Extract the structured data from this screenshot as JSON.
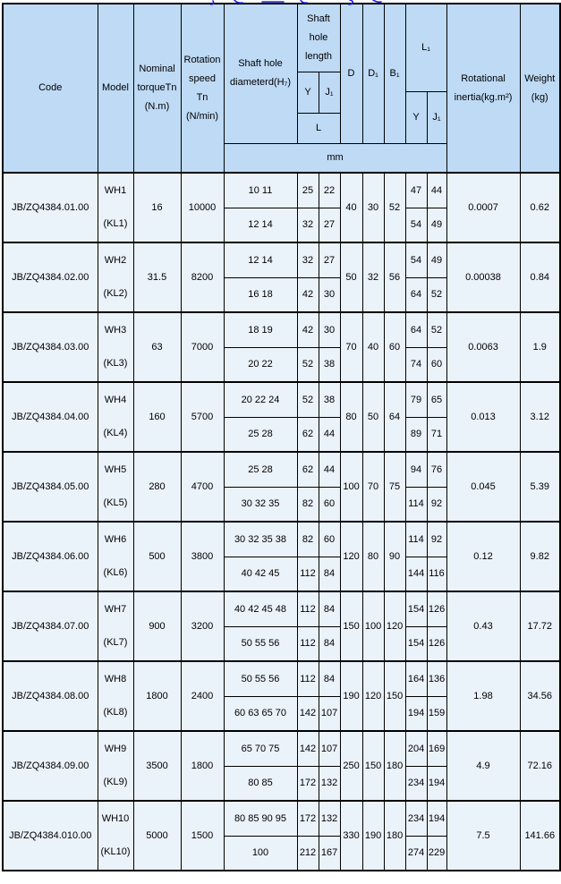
{
  "colors": {
    "header-bg": "#bedaf5",
    "row-bg": "#eaf2fa",
    "border": "#000000",
    "fragment-blue": "#1f1fe0",
    "page-bg": "#ffffff"
  },
  "table": {
    "header": {
      "code": "Code",
      "model": "Model",
      "torque": "Nominal\ntorqueTn\n(N.m)",
      "speed": "Rotation\nspeed\nTn\n(N/min)",
      "dia": "Shaft hole\ndiameterd(H₇)",
      "hole_length": "Shaft\nhole\nlength",
      "y": "Y",
      "j1": "J₁",
      "l": "L",
      "d": "D",
      "d1": "D₁",
      "b1": "B₁",
      "l1": "L₁",
      "l1_y": "Y",
      "l1_j1": "J₁",
      "inertia": "Rotational\ninertia(kg.m²)",
      "weight": "Weight\n(kg)",
      "unit": "mm"
    },
    "rows": [
      {
        "code": "JB/ZQ4384.01.00",
        "model": "WH1",
        "model_alt": "(KL1)",
        "torque": "16",
        "speed": "10000",
        "d": "40",
        "d1": "30",
        "b1": "52",
        "inertia": "0.0007",
        "weight": "0.62",
        "sub": [
          {
            "dia": "10 11",
            "y": "25",
            "j1": "22",
            "l1y": "47",
            "l1j1": "44"
          },
          {
            "dia": "12 14",
            "y": "32",
            "j1": "27",
            "l1y": "54",
            "l1j1": "49"
          }
        ]
      },
      {
        "code": "JB/ZQ4384.02.00",
        "model": "WH2",
        "model_alt": "(KL2)",
        "torque": "31.5",
        "speed": "8200",
        "d": "50",
        "d1": "32",
        "b1": "56",
        "inertia": "0.00038",
        "weight": "0.84",
        "sub": [
          {
            "dia": "12 14",
            "y": "32",
            "j1": "27",
            "l1y": "54",
            "l1j1": "49"
          },
          {
            "dia": "16 18",
            "y": "42",
            "j1": "30",
            "l1y": "64",
            "l1j1": "52"
          }
        ]
      },
      {
        "code": "JB/ZQ4384.03.00",
        "model": "WH3",
        "model_alt": "(KL3)",
        "torque": "63",
        "speed": "7000",
        "d": "70",
        "d1": "40",
        "b1": "60",
        "inertia": "0.0063",
        "weight": "1.9",
        "sub": [
          {
            "dia": "18 19",
            "y": "42",
            "j1": "30",
            "l1y": "64",
            "l1j1": "52"
          },
          {
            "dia": "20 22",
            "y": "52",
            "j1": "38",
            "l1y": "74",
            "l1j1": "60"
          }
        ]
      },
      {
        "code": "JB/ZQ4384.04.00",
        "model": "WH4",
        "model_alt": "(KL4)",
        "torque": "160",
        "speed": "5700",
        "d": "80",
        "d1": "50",
        "b1": "64",
        "inertia": "0.013",
        "weight": "3.12",
        "sub": [
          {
            "dia": "20 22 24",
            "y": "52",
            "j1": "38",
            "l1y": "79",
            "l1j1": "65"
          },
          {
            "dia": "25 28",
            "y": "62",
            "j1": "44",
            "l1y": "89",
            "l1j1": "71"
          }
        ]
      },
      {
        "code": "JB/ZQ4384.05.00",
        "model": "WH5",
        "model_alt": "(KL5)",
        "torque": "280",
        "speed": "4700",
        "d": "100",
        "d1": "70",
        "b1": "75",
        "inertia": "0.045",
        "weight": "5.39",
        "sub": [
          {
            "dia": "25 28",
            "y": "62",
            "j1": "44",
            "l1y": "94",
            "l1j1": "76"
          },
          {
            "dia": "30 32 35",
            "y": "82",
            "j1": "60",
            "l1y": "114",
            "l1j1": "92"
          }
        ]
      },
      {
        "code": "JB/ZQ4384.06.00",
        "model": "WH6",
        "model_alt": "(KL6)",
        "torque": "500",
        "speed": "3800",
        "d": "120",
        "d1": "80",
        "b1": "90",
        "inertia": "0.12",
        "weight": "9.82",
        "sub": [
          {
            "dia": "30 32 35 38",
            "y": "82",
            "j1": "60",
            "l1y": "114",
            "l1j1": "92"
          },
          {
            "dia": "40 42 45",
            "y": "112",
            "j1": "84",
            "l1y": "144",
            "l1j1": "116"
          }
        ]
      },
      {
        "code": "JB/ZQ4384.07.00",
        "model": "WH7",
        "model_alt": "(KL7)",
        "torque": "900",
        "speed": "3200",
        "d": "150",
        "d1": "100",
        "b1": "120",
        "inertia": "0.43",
        "weight": "17.72",
        "sub": [
          {
            "dia": "40 42 45 48",
            "y": "112",
            "j1": "84",
            "l1y": "154",
            "l1j1": "126"
          },
          {
            "dia": "50 55 56",
            "y": "112",
            "j1": "84",
            "l1y": "154",
            "l1j1": "126"
          }
        ]
      },
      {
        "code": "JB/ZQ4384.08.00",
        "model": "WH8",
        "model_alt": "(KL8)",
        "torque": "1800",
        "speed": "2400",
        "d": "190",
        "d1": "120",
        "b1": "150",
        "inertia": "1.98",
        "weight": "34.56",
        "sub": [
          {
            "dia": "50 55 56",
            "y": "112",
            "j1": "84",
            "l1y": "164",
            "l1j1": "136"
          },
          {
            "dia": "60 63 65 70",
            "y": "142",
            "j1": "107",
            "l1y": "194",
            "l1j1": "159"
          }
        ]
      },
      {
        "code": "JB/ZQ4384.09.00",
        "model": "WH9",
        "model_alt": "(KL9)",
        "torque": "3500",
        "speed": "1800",
        "d": "250",
        "d1": "150",
        "b1": "180",
        "inertia": "4.9",
        "weight": "72.16",
        "sub": [
          {
            "dia": "65 70 75",
            "y": "142",
            "j1": "107",
            "l1y": "204",
            "l1j1": "169"
          },
          {
            "dia": "80 85",
            "y": "172",
            "j1": "132",
            "l1y": "234",
            "l1j1": "194"
          }
        ]
      },
      {
        "code": "JB/ZQ4384.010.00",
        "model": "WH10",
        "model_alt": "(KL10)",
        "torque": "5000",
        "speed": "1500",
        "d": "330",
        "d1": "190",
        "b1": "180",
        "inertia": "7.5",
        "weight": "141.66",
        "sub": [
          {
            "dia": "80 85 90 95",
            "y": "172",
            "j1": "132",
            "l1y": "234",
            "l1j1": "194"
          },
          {
            "dia": "100",
            "y": "212",
            "j1": "167",
            "l1y": "274",
            "l1j1": "229"
          }
        ]
      }
    ]
  }
}
